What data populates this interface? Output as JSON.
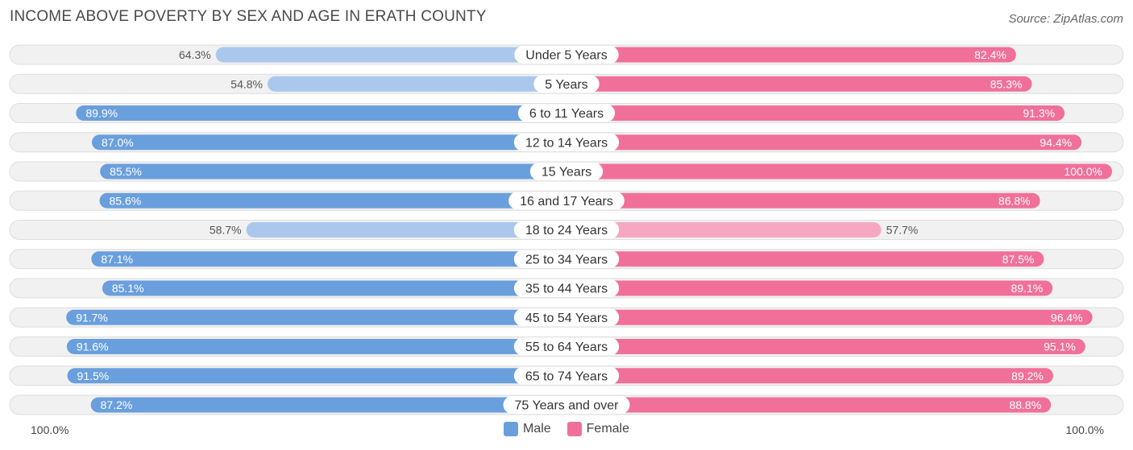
{
  "title": "INCOME ABOVE POVERTY BY SEX AND AGE IN ERATH COUNTY",
  "source": "Source: ZipAtlas.com",
  "axis": {
    "left_label": "100.0%",
    "right_label": "100.0%"
  },
  "legend": [
    {
      "label": "Male",
      "color": "#6a9fdd"
    },
    {
      "label": "Female",
      "color": "#f0709a"
    }
  ],
  "colors": {
    "male_strong": "#6a9fdd",
    "male_light": "#a9c8ec",
    "female_strong": "#f0709a",
    "female_light": "#f6a8c2",
    "row_bg": "#f1f1f1",
    "row_border": "#dedede"
  },
  "chart_data": {
    "type": "bar",
    "orientation": "horizontal-diverging",
    "title": "INCOME ABOVE POVERTY BY SEX AND AGE IN ERATH COUNTY",
    "xlim": [
      0,
      100
    ],
    "value_format": "percent",
    "categories": [
      "Under 5 Years",
      "5 Years",
      "6 to 11 Years",
      "12 to 14 Years",
      "15 Years",
      "16 and 17 Years",
      "18 to 24 Years",
      "25 to 34 Years",
      "35 to 44 Years",
      "45 to 54 Years",
      "55 to 64 Years",
      "65 to 74 Years",
      "75 Years and over"
    ],
    "series": [
      {
        "name": "Male",
        "side": "left",
        "values": [
          64.3,
          54.8,
          89.9,
          87.0,
          85.5,
          85.6,
          58.7,
          87.1,
          85.1,
          91.7,
          91.6,
          91.5,
          87.2
        ],
        "labels": [
          "64.3%",
          "54.8%",
          "89.9%",
          "87.0%",
          "85.5%",
          "85.6%",
          "58.7%",
          "87.1%",
          "85.1%",
          "91.7%",
          "91.6%",
          "91.5%",
          "87.2%"
        ]
      },
      {
        "name": "Female",
        "side": "right",
        "values": [
          82.4,
          85.3,
          91.3,
          94.4,
          100.0,
          86.8,
          57.7,
          87.5,
          89.1,
          96.4,
          95.1,
          89.2,
          88.8
        ],
        "labels": [
          "82.4%",
          "85.3%",
          "91.3%",
          "94.4%",
          "100.0%",
          "86.8%",
          "57.7%",
          "87.5%",
          "89.1%",
          "96.4%",
          "95.1%",
          "89.2%",
          "88.8%"
        ]
      }
    ]
  }
}
